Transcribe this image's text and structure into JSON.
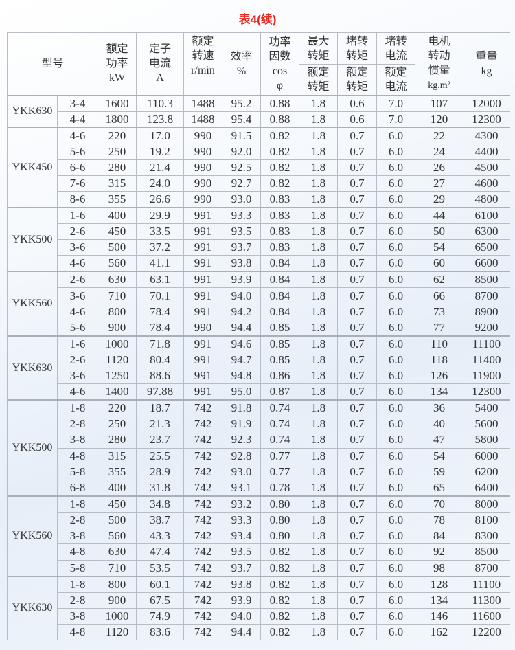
{
  "title": "表4(续)",
  "headers": {
    "model": "型号",
    "power": [
      "额定",
      "功率",
      "kW"
    ],
    "current": [
      "定子",
      "电流",
      "A"
    ],
    "speed": [
      "额定",
      "转速",
      "r/min"
    ],
    "efficiency": [
      "效率",
      "%"
    ],
    "pf": [
      "功率",
      "因数",
      "cos",
      "φ"
    ],
    "max_torque": {
      "top": [
        "最大",
        "转矩"
      ],
      "bottom": [
        "额定",
        "转矩"
      ]
    },
    "lock_torque": {
      "top": [
        "堵转",
        "转矩"
      ],
      "bottom": [
        "额定",
        "转矩"
      ]
    },
    "lock_current": {
      "top": [
        "堵转",
        "电流"
      ],
      "bottom": [
        "额定",
        "电流"
      ]
    },
    "inertia": [
      "电机",
      "转动",
      "惯量",
      "kg.m²"
    ],
    "weight": [
      "重量",
      "kg"
    ]
  },
  "groups": [
    {
      "model": "YKK630",
      "rows": [
        [
          "3-4",
          "1600",
          "110.3",
          "1488",
          "95.2",
          "0.88",
          "1.8",
          "0.6",
          "7.0",
          "107",
          "12000"
        ],
        [
          "4-4",
          "1800",
          "123.8",
          "1488",
          "95.4",
          "0.88",
          "1.8",
          "0.6",
          "7.0",
          "120",
          "12300"
        ]
      ]
    },
    {
      "model": "YKK450",
      "rows": [
        [
          "4-6",
          "220",
          "17.0",
          "990",
          "91.5",
          "0.82",
          "1.8",
          "0.7",
          "6.0",
          "22",
          "4300"
        ],
        [
          "5-6",
          "250",
          "19.2",
          "990",
          "92.0",
          "0.82",
          "1.8",
          "0.7",
          "6.0",
          "24",
          "4400"
        ],
        [
          "6-6",
          "280",
          "21.4",
          "990",
          "92.5",
          "0.82",
          "1.8",
          "0.7",
          "6.0",
          "26",
          "4500"
        ],
        [
          "7-6",
          "315",
          "24.0",
          "990",
          "92.7",
          "0.82",
          "1.8",
          "0.7",
          "6.0",
          "27",
          "4600"
        ],
        [
          "8-6",
          "355",
          "26.6",
          "990",
          "93.0",
          "0.83",
          "1.8",
          "0.7",
          "6.0",
          "29",
          "4800"
        ]
      ]
    },
    {
      "model": "YKK500",
      "rows": [
        [
          "1-6",
          "400",
          "29.9",
          "991",
          "93.3",
          "0.83",
          "1.8",
          "0.7",
          "6.0",
          "44",
          "6100"
        ],
        [
          "2-6",
          "450",
          "33.5",
          "991",
          "93.5",
          "0.83",
          "1.8",
          "0.7",
          "6.0",
          "50",
          "6300"
        ],
        [
          "3-6",
          "500",
          "37.2",
          "991",
          "93.7",
          "0.83",
          "1.8",
          "0.7",
          "6.0",
          "54",
          "6500"
        ],
        [
          "4-6",
          "560",
          "41.1",
          "991",
          "93.8",
          "0.84",
          "1.8",
          "0.7",
          "6.0",
          "60",
          "6600"
        ]
      ]
    },
    {
      "model": "YKK560",
      "rows": [
        [
          "2-6",
          "630",
          "63.1",
          "991",
          "93.9",
          "0.84",
          "1.8",
          "0.7",
          "6.0",
          "62",
          "8500"
        ],
        [
          "3-6",
          "710",
          "70.1",
          "991",
          "94.0",
          "0.84",
          "1.8",
          "0.7",
          "6.0",
          "66",
          "8700"
        ],
        [
          "4-6",
          "800",
          "78.4",
          "991",
          "94.2",
          "0.84",
          "1.8",
          "0.7",
          "6.0",
          "73",
          "8900"
        ],
        [
          "5-6",
          "900",
          "78.4",
          "990",
          "94.4",
          "0.85",
          "1.8",
          "0.7",
          "6.0",
          "77",
          "9200"
        ]
      ]
    },
    {
      "model": "YKK630",
      "rows": [
        [
          "1-6",
          "1000",
          "71.8",
          "991",
          "94.6",
          "0.85",
          "1.8",
          "0.7",
          "6.0",
          "110",
          "11100"
        ],
        [
          "2-6",
          "1120",
          "80.4",
          "991",
          "94.7",
          "0.85",
          "1.8",
          "0.7",
          "6.0",
          "118",
          "11400"
        ],
        [
          "3-6",
          "1250",
          "88.6",
          "991",
          "94.8",
          "0.86",
          "1.8",
          "0.7",
          "6.0",
          "126",
          "11900"
        ],
        [
          "4-6",
          "1400",
          "97.88",
          "991",
          "95.0",
          "0.87",
          "1.8",
          "0.7",
          "6.0",
          "134",
          "12300"
        ]
      ]
    },
    {
      "model": "YKK500",
      "rows": [
        [
          "1-8",
          "220",
          "18.7",
          "742",
          "91.8",
          "0.74",
          "1.8",
          "0.7",
          "6.0",
          "36",
          "5400"
        ],
        [
          "2-8",
          "250",
          "21.3",
          "742",
          "91.9",
          "0.74",
          "1.8",
          "0.7",
          "6.0",
          "40",
          "5600"
        ],
        [
          "3-8",
          "280",
          "23.7",
          "742",
          "92.3",
          "0.74",
          "1.8",
          "0.7",
          "6.0",
          "47",
          "5800"
        ],
        [
          "4-8",
          "315",
          "25.5",
          "742",
          "92.8",
          "0.77",
          "1.8",
          "0.7",
          "6.0",
          "54",
          "6000"
        ],
        [
          "5-8",
          "355",
          "28.9",
          "742",
          "93.0",
          "0.77",
          "1.8",
          "0.7",
          "6.0",
          "59",
          "6200"
        ],
        [
          "6-8",
          "400",
          "31.8",
          "742",
          "93.1",
          "0.78",
          "1.8",
          "0.7",
          "6.0",
          "65",
          "6400"
        ]
      ]
    },
    {
      "model": "YKK560",
      "rows": [
        [
          "1-8",
          "450",
          "34.8",
          "742",
          "93.2",
          "0.80",
          "1.8",
          "0.7",
          "6.0",
          "70",
          "8000"
        ],
        [
          "2-8",
          "500",
          "38.7",
          "742",
          "93.3",
          "0.80",
          "1.8",
          "0.7",
          "6.0",
          "78",
          "8100"
        ],
        [
          "3-8",
          "560",
          "43.3",
          "742",
          "93.4",
          "0.80",
          "1.8",
          "0.7",
          "6.0",
          "84",
          "8300"
        ],
        [
          "4-8",
          "630",
          "47.4",
          "742",
          "93.5",
          "0.82",
          "1.8",
          "0.7",
          "6.0",
          "92",
          "8500"
        ],
        [
          "5-8",
          "710",
          "53.5",
          "742",
          "93.7",
          "0.82",
          "1.8",
          "0.7",
          "6.0",
          "98",
          "8700"
        ]
      ]
    },
    {
      "model": "YKK630",
      "rows": [
        [
          "1-8",
          "800",
          "60.1",
          "742",
          "93.8",
          "0.82",
          "1.8",
          "0.7",
          "6.0",
          "128",
          "11100"
        ],
        [
          "2-8",
          "900",
          "67.5",
          "742",
          "93.9",
          "0.82",
          "1.8",
          "0.7",
          "6.0",
          "134",
          "11300"
        ],
        [
          "3-8",
          "1000",
          "74.9",
          "742",
          "94.0",
          "0.82",
          "1.8",
          "0.7",
          "6.0",
          "146",
          "11600"
        ],
        [
          "4-8",
          "1120",
          "83.6",
          "742",
          "94.4",
          "0.82",
          "1.8",
          "0.7",
          "6.0",
          "162",
          "12200"
        ]
      ]
    }
  ]
}
